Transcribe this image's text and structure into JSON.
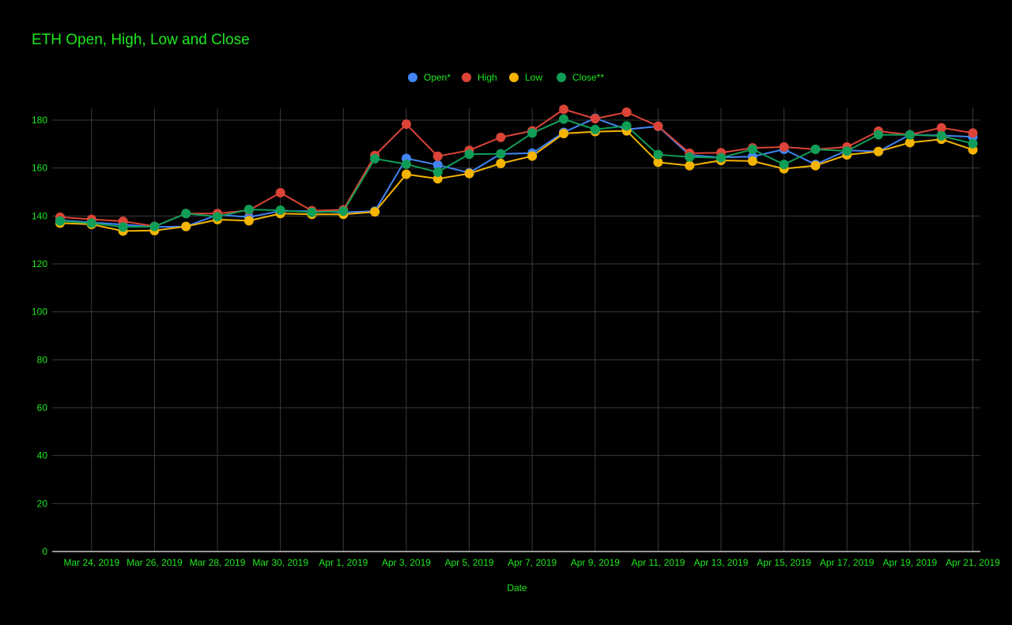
{
  "chart_data": {
    "type": "line",
    "title": "ETH Open, High, Low and Close",
    "xlabel": "Date",
    "ylabel": "",
    "ylim": [
      0,
      180
    ],
    "yticks": [
      0,
      20,
      40,
      60,
      80,
      100,
      120,
      140,
      160,
      180
    ],
    "legend_position": "top-center",
    "grid": true,
    "x": [
      "2019-03-23",
      "2019-03-24",
      "2019-03-25",
      "2019-03-26",
      "2019-03-27",
      "2019-03-28",
      "2019-03-29",
      "2019-03-30",
      "2019-03-31",
      "2019-04-01",
      "2019-04-02",
      "2019-04-03",
      "2019-04-04",
      "2019-04-05",
      "2019-04-06",
      "2019-04-07",
      "2019-04-08",
      "2019-04-09",
      "2019-04-10",
      "2019-04-11",
      "2019-04-12",
      "2019-04-13",
      "2019-04-14",
      "2019-04-15",
      "2019-04-16",
      "2019-04-17",
      "2019-04-18",
      "2019-04-19",
      "2019-04-20",
      "2019-04-21"
    ],
    "tick_labels": [
      {
        "index": 1,
        "label": "Mar 24, 2019"
      },
      {
        "index": 3,
        "label": "Mar 26, 2019"
      },
      {
        "index": 5,
        "label": "Mar 28, 2019"
      },
      {
        "index": 7,
        "label": "Mar 30, 2019"
      },
      {
        "index": 9,
        "label": "Apr 1, 2019"
      },
      {
        "index": 11,
        "label": "Apr 3, 2019"
      },
      {
        "index": 13,
        "label": "Apr 5, 2019"
      },
      {
        "index": 15,
        "label": "Apr 7, 2019"
      },
      {
        "index": 17,
        "label": "Apr 9, 2019"
      },
      {
        "index": 19,
        "label": "Apr 11, 2019"
      },
      {
        "index": 21,
        "label": "Apr 13, 2019"
      },
      {
        "index": 23,
        "label": "Apr 15, 2019"
      },
      {
        "index": 25,
        "label": "Apr 17, 2019"
      },
      {
        "index": 27,
        "label": "Apr 19, 2019"
      },
      {
        "index": 29,
        "label": "Apr 21, 2019"
      }
    ],
    "series": [
      {
        "name": "Open*",
        "color": "#4285f4",
        "values": [
          138.2,
          137.3,
          136.4,
          135.4,
          135.6,
          140.5,
          139.5,
          142.1,
          142.0,
          141.5,
          142.0,
          164.0,
          161.3,
          158.0,
          165.9,
          166.2,
          174.9,
          180.8,
          176.1,
          177.4,
          165.4,
          164.4,
          164.8,
          167.8,
          161.5,
          167.4,
          166.9,
          173.9,
          173.6,
          173.0
        ]
      },
      {
        "name": "High",
        "color": "#db4437",
        "values": [
          139.5,
          138.6,
          137.8,
          135.7,
          141.0,
          141.0,
          142.4,
          149.7,
          142.2,
          142.6,
          165.2,
          178.3,
          164.9,
          167.4,
          172.8,
          175.5,
          184.5,
          180.6,
          183.3,
          177.5,
          166.2,
          166.4,
          168.4,
          168.8,
          167.8,
          168.8,
          175.4,
          173.9,
          176.8,
          174.6
        ]
      },
      {
        "name": "Low",
        "color": "#f4b400",
        "values": [
          137.0,
          136.5,
          133.7,
          133.9,
          135.6,
          138.5,
          138.0,
          141.0,
          140.7,
          140.7,
          141.7,
          157.4,
          155.5,
          157.7,
          161.9,
          165.0,
          174.4,
          175.2,
          175.5,
          162.4,
          161.0,
          163.2,
          162.9,
          159.7,
          161.0,
          165.5,
          166.9,
          170.6,
          172.0,
          167.6
        ]
      },
      {
        "name": "Close**",
        "color": "#0f9d58",
        "values": [
          137.9,
          137.0,
          135.4,
          135.6,
          141.0,
          139.7,
          142.7,
          142.4,
          141.5,
          142.0,
          163.9,
          161.6,
          158.3,
          165.8,
          165.9,
          174.6,
          180.4,
          176.1,
          177.6,
          165.6,
          164.6,
          164.3,
          167.8,
          161.5,
          167.8,
          167.1,
          173.9,
          173.8,
          173.4,
          170.2
        ]
      }
    ]
  }
}
